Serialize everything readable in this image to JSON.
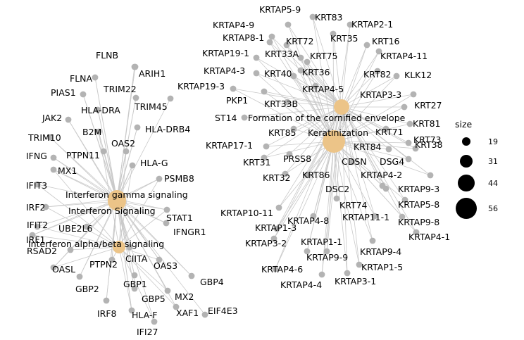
{
  "legend": {
    "title": "size",
    "values": [
      "19",
      "31",
      "44",
      "56"
    ],
    "dot_color": "#000000"
  },
  "colors": {
    "term": "#ecc488",
    "gene": "#b3b3b3",
    "edge": "#c9c9c9"
  },
  "terms": [
    {
      "id": "ifng",
      "label": "Interferon gamma signaling",
      "size": 31
    },
    {
      "id": "ifs",
      "label": "Interferon Signaling",
      "size": 44
    },
    {
      "id": "ifab",
      "label": "Interferon alpha/beta signaling",
      "size": 19
    },
    {
      "id": "cornified",
      "label": "Formation of the cornified envelope",
      "size": 31
    },
    {
      "id": "kera",
      "label": "Keratinization",
      "size": 56
    }
  ],
  "genes": [
    {
      "id": "FLNB",
      "label": "FLNB",
      "terms": [
        "ifng",
        "ifs"
      ]
    },
    {
      "id": "ARIH1",
      "label": "ARIH1",
      "terms": [
        "ifs"
      ]
    },
    {
      "id": "FLNA",
      "label": "FLNA",
      "terms": [
        "ifng",
        "ifs"
      ]
    },
    {
      "id": "TRIM22",
      "label": "TRIM22",
      "terms": [
        "ifng",
        "ifs"
      ]
    },
    {
      "id": "PIAS1",
      "label": "PIAS1",
      "terms": [
        "ifng",
        "ifs"
      ]
    },
    {
      "id": "TRIM45",
      "label": "TRIM45",
      "terms": [
        "ifs"
      ]
    },
    {
      "id": "HLA-DRA",
      "label": "HLA-DRA",
      "terms": [
        "ifng",
        "ifs"
      ]
    },
    {
      "id": "JAK2",
      "label": "JAK2",
      "terms": [
        "ifng",
        "ifs"
      ]
    },
    {
      "id": "HLA-DRB4",
      "label": "HLA-DRB4",
      "terms": [
        "ifng",
        "ifs"
      ]
    },
    {
      "id": "B2M",
      "label": "B2M",
      "terms": [
        "ifng",
        "ifs",
        "ifab"
      ]
    },
    {
      "id": "TRIM10",
      "label": "TRIM10",
      "terms": [
        "ifng",
        "ifs"
      ]
    },
    {
      "id": "OAS2",
      "label": "OAS2",
      "terms": [
        "ifng",
        "ifs",
        "ifab"
      ]
    },
    {
      "id": "IFNG",
      "label": "IFNG",
      "terms": [
        "ifng",
        "ifs"
      ]
    },
    {
      "id": "PTPN11",
      "label": "PTPN11",
      "terms": [
        "ifng",
        "ifs"
      ]
    },
    {
      "id": "HLA-G",
      "label": "HLA-G",
      "terms": [
        "ifng",
        "ifs",
        "ifab"
      ]
    },
    {
      "id": "MX1",
      "label": "MX1",
      "terms": [
        "ifng",
        "ifs",
        "ifab"
      ]
    },
    {
      "id": "PSMB8",
      "label": "PSMB8",
      "terms": [
        "ifng",
        "ifs",
        "ifab"
      ]
    },
    {
      "id": "IFIT3",
      "label": "IFIT3",
      "terms": [
        "ifs",
        "ifab"
      ]
    },
    {
      "id": "IRF2",
      "label": "IRF2",
      "terms": [
        "ifng",
        "ifs",
        "ifab"
      ]
    },
    {
      "id": "STAT1",
      "label": "STAT1",
      "terms": [
        "ifng",
        "ifs",
        "ifab"
      ]
    },
    {
      "id": "IFIT2",
      "label": "IFIT2",
      "terms": [
        "ifs",
        "ifab"
      ]
    },
    {
      "id": "UBE2L6",
      "label": "UBE2L6",
      "terms": [
        "ifs"
      ]
    },
    {
      "id": "IFNGR1",
      "label": "IFNGR1",
      "terms": [
        "ifng",
        "ifs"
      ]
    },
    {
      "id": "IRF1",
      "label": "IRF1",
      "terms": [
        "ifng",
        "ifs",
        "ifab"
      ]
    },
    {
      "id": "RSAD2",
      "label": "RSAD2",
      "terms": [
        "ifs",
        "ifab"
      ]
    },
    {
      "id": "CIITA",
      "label": "CIITA",
      "terms": [
        "ifng",
        "ifs"
      ]
    },
    {
      "id": "OASL",
      "label": "OASL",
      "terms": [
        "ifng",
        "ifs",
        "ifab"
      ]
    },
    {
      "id": "PTPN2",
      "label": "PTPN2",
      "terms": [
        "ifng",
        "ifs",
        "ifab"
      ]
    },
    {
      "id": "OAS3",
      "label": "OAS3",
      "terms": [
        "ifng",
        "ifs",
        "ifab"
      ]
    },
    {
      "id": "GBP2",
      "label": "GBP2",
      "terms": [
        "ifng",
        "ifs"
      ]
    },
    {
      "id": "GBP1",
      "label": "GBP1",
      "terms": [
        "ifng",
        "ifs"
      ]
    },
    {
      "id": "GBP4",
      "label": "GBP4",
      "terms": [
        "ifng",
        "ifs"
      ]
    },
    {
      "id": "GBP5",
      "label": "GBP5",
      "terms": [
        "ifng",
        "ifs"
      ]
    },
    {
      "id": "MX2",
      "label": "MX2",
      "terms": [
        "ifs",
        "ifab"
      ]
    },
    {
      "id": "IRF8",
      "label": "IRF8",
      "terms": [
        "ifng",
        "ifs"
      ]
    },
    {
      "id": "HLA-F",
      "label": "HLA-F",
      "terms": [
        "ifng",
        "ifs",
        "ifab"
      ]
    },
    {
      "id": "XAF1",
      "label": "XAF1",
      "terms": [
        "ifs",
        "ifab"
      ]
    },
    {
      "id": "EIF4E3",
      "label": "EIF4E3",
      "terms": [
        "ifs"
      ]
    },
    {
      "id": "IFI27",
      "label": "IFI27",
      "terms": [
        "ifs",
        "ifab"
      ]
    },
    {
      "id": "KRTAP5-9",
      "label": "KRTAP5-9",
      "terms": [
        "cornified",
        "kera"
      ]
    },
    {
      "id": "KRT83",
      "label": "KRT83",
      "terms": [
        "cornified",
        "kera"
      ]
    },
    {
      "id": "KRTAP2-1",
      "label": "KRTAP2-1",
      "terms": [
        "cornified",
        "kera"
      ]
    },
    {
      "id": "KRTAP4-9",
      "label": "KRTAP4-9",
      "terms": [
        "cornified",
        "kera"
      ]
    },
    {
      "id": "KRTAP8-1",
      "label": "KRTAP8-1",
      "terms": [
        "cornified",
        "kera"
      ]
    },
    {
      "id": "KRT72",
      "label": "KRT72",
      "terms": [
        "cornified",
        "kera"
      ]
    },
    {
      "id": "KRT35",
      "label": "KRT35",
      "terms": [
        "cornified",
        "kera"
      ]
    },
    {
      "id": "KRT16",
      "label": "KRT16",
      "terms": [
        "cornified",
        "kera"
      ]
    },
    {
      "id": "KRTAP19-1",
      "label": "KRTAP19-1",
      "terms": [
        "cornified",
        "kera"
      ]
    },
    {
      "id": "KRT33A",
      "label": "KRT33A",
      "terms": [
        "cornified",
        "kera"
      ]
    },
    {
      "id": "KRT75",
      "label": "KRT75",
      "terms": [
        "cornified",
        "kera"
      ]
    },
    {
      "id": "KRTAP4-11",
      "label": "KRTAP4-11",
      "terms": [
        "cornified",
        "kera"
      ]
    },
    {
      "id": "KRTAP4-3",
      "label": "KRTAP4-3",
      "terms": [
        "cornified",
        "kera"
      ]
    },
    {
      "id": "KRT40",
      "label": "KRT40",
      "terms": [
        "cornified",
        "kera"
      ]
    },
    {
      "id": "KRT36",
      "label": "KRT36",
      "terms": [
        "cornified",
        "kera"
      ]
    },
    {
      "id": "KRT82",
      "label": "KRT82",
      "terms": [
        "cornified",
        "kera"
      ]
    },
    {
      "id": "KLK12",
      "label": "KLK12",
      "terms": [
        "cornified",
        "kera"
      ]
    },
    {
      "id": "KRTAP19-3",
      "label": "KRTAP19-3",
      "terms": [
        "cornified",
        "kera"
      ]
    },
    {
      "id": "KRTAP4-5",
      "label": "KRTAP4-5",
      "terms": [
        "cornified",
        "kera"
      ]
    },
    {
      "id": "PKP1",
      "label": "PKP1",
      "terms": [
        "cornified",
        "kera"
      ]
    },
    {
      "id": "KRTAP3-3",
      "label": "KRTAP3-3",
      "terms": [
        "cornified",
        "kera"
      ]
    },
    {
      "id": "KRT33B",
      "label": "KRT33B",
      "terms": [
        "cornified",
        "kera"
      ]
    },
    {
      "id": "KRT27",
      "label": "KRT27",
      "terms": [
        "cornified",
        "kera"
      ]
    },
    {
      "id": "ST14",
      "label": "ST14",
      "terms": [
        "cornified"
      ]
    },
    {
      "id": "KRT81",
      "label": "KRT81",
      "terms": [
        "cornified",
        "kera"
      ]
    },
    {
      "id": "KRT85",
      "label": "KRT85",
      "terms": [
        "cornified",
        "kera"
      ]
    },
    {
      "id": "KRT71",
      "label": "KRT71",
      "terms": [
        "cornified",
        "kera"
      ]
    },
    {
      "id": "KRT38",
      "label": "KRT38",
      "terms": [
        "cornified",
        "kera"
      ]
    },
    {
      "id": "KRTAP17-1",
      "label": "KRTAP17-1",
      "terms": [
        "cornified",
        "kera"
      ]
    },
    {
      "id": "KRT84",
      "label": "KRT84",
      "terms": [
        "cornified",
        "kera"
      ]
    },
    {
      "id": "KRT73",
      "label": "KRT73",
      "terms": [
        "cornified",
        "kera"
      ]
    },
    {
      "id": "KRT31",
      "label": "KRT31",
      "terms": [
        "cornified",
        "kera"
      ]
    },
    {
      "id": "PRSS8",
      "label": "PRSS8",
      "terms": [
        "cornified"
      ]
    },
    {
      "id": "CDSN",
      "label": "CDSN",
      "terms": [
        "cornified",
        "kera"
      ]
    },
    {
      "id": "DSG4",
      "label": "DSG4",
      "terms": [
        "cornified",
        "kera"
      ]
    },
    {
      "id": "KRTAP4-2",
      "label": "KRTAP4-2",
      "terms": [
        "cornified",
        "kera"
      ]
    },
    {
      "id": "KRT32",
      "label": "KRT32",
      "terms": [
        "cornified",
        "kera"
      ]
    },
    {
      "id": "KRT86",
      "label": "KRT86",
      "terms": [
        "cornified",
        "kera"
      ]
    },
    {
      "id": "DSC2",
      "label": "DSC2",
      "terms": [
        "cornified",
        "kera"
      ]
    },
    {
      "id": "KRTAP9-3",
      "label": "KRTAP9-3",
      "terms": [
        "cornified",
        "kera"
      ]
    },
    {
      "id": "KRT74",
      "label": "KRT74",
      "terms": [
        "cornified",
        "kera"
      ]
    },
    {
      "id": "KRTAP5-8",
      "label": "KRTAP5-8",
      "terms": [
        "cornified",
        "kera"
      ]
    },
    {
      "id": "KRTAP10-11",
      "label": "KRTAP10-11",
      "terms": [
        "cornified",
        "kera"
      ]
    },
    {
      "id": "KRTAP11-1",
      "label": "KRTAP11-1",
      "terms": [
        "cornified",
        "kera"
      ]
    },
    {
      "id": "KRTAP9-8",
      "label": "KRTAP9-8",
      "terms": [
        "cornified",
        "kera"
      ]
    },
    {
      "id": "KRTAP4-8",
      "label": "KRTAP4-8",
      "terms": [
        "cornified",
        "kera"
      ]
    },
    {
      "id": "KRTAP1-3",
      "label": "KRTAP1-3",
      "terms": [
        "cornified",
        "kera"
      ]
    },
    {
      "id": "KRTAP4-1",
      "label": "KRTAP4-1",
      "terms": [
        "cornified",
        "kera"
      ]
    },
    {
      "id": "KRTAP3-2",
      "label": "KRTAP3-2",
      "terms": [
        "cornified",
        "kera"
      ]
    },
    {
      "id": "KRTAP1-1",
      "label": "KRTAP1-1",
      "terms": [
        "cornified",
        "kera"
      ]
    },
    {
      "id": "KRTAP9-4",
      "label": "KRTAP9-4",
      "terms": [
        "cornified",
        "kera"
      ]
    },
    {
      "id": "KRTAP9-9",
      "label": "KRTAP9-9",
      "terms": [
        "cornified",
        "kera"
      ]
    },
    {
      "id": "KRTAP1-5",
      "label": "KRTAP1-5",
      "terms": [
        "cornified",
        "kera"
      ]
    },
    {
      "id": "KRTAP4-6",
      "label": "KRTAP4-6",
      "terms": [
        "cornified",
        "kera"
      ]
    },
    {
      "id": "KRTAP4-4",
      "label": "KRTAP4-4",
      "terms": [
        "cornified",
        "kera"
      ]
    },
    {
      "id": "KRTAP3-1",
      "label": "KRTAP3-1",
      "terms": [
        "cornified",
        "kera"
      ]
    }
  ]
}
